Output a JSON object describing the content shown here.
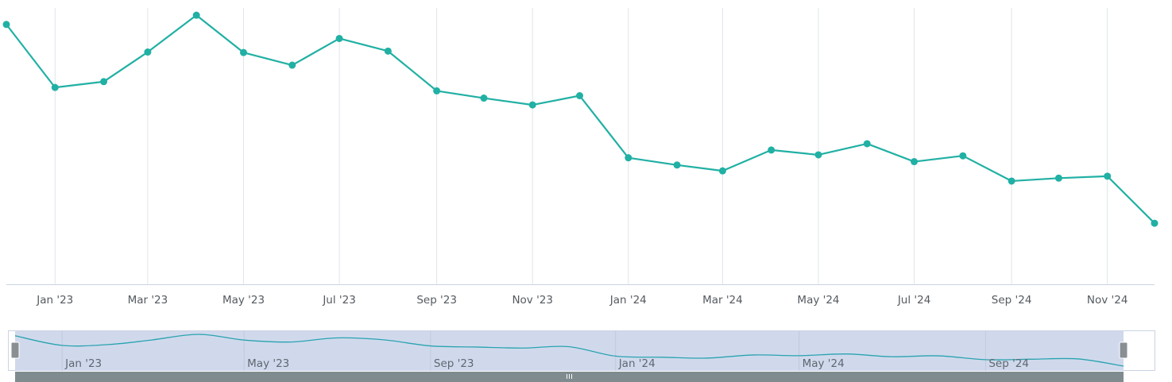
{
  "chart_data": {
    "type": "line",
    "x": [
      "2022-12-01",
      "2023-01-01",
      "2023-02-01",
      "2023-03-01",
      "2023-04-01",
      "2023-05-01",
      "2023-06-01",
      "2023-07-01",
      "2023-08-01",
      "2023-09-01",
      "2023-10-01",
      "2023-11-01",
      "2023-12-01",
      "2024-01-01",
      "2024-02-01",
      "2024-03-01",
      "2024-04-01",
      "2024-05-01",
      "2024-06-01",
      "2024-07-01",
      "2024-08-01",
      "2024-09-01",
      "2024-10-01",
      "2024-11-01",
      "2024-12-01"
    ],
    "series": [
      {
        "values": [
          88.6,
          75.6,
          76.8,
          82.9,
          90.5,
          82.8,
          80.2,
          85.7,
          83.1,
          74.9,
          73.4,
          72.0,
          73.9,
          61.1,
          59.6,
          58.4,
          62.7,
          61.7,
          64.0,
          60.3,
          61.5,
          56.3,
          56.9,
          57.3,
          47.6
        ]
      }
    ],
    "x_tick_labels": [
      "Jan '23",
      "Mar '23",
      "May '23",
      "Jul '23",
      "Sep '23",
      "Nov '23",
      "Jan '24",
      "Mar '24",
      "May '24",
      "Jul '24",
      "Sep '24",
      "Nov '24"
    ],
    "ylim": [
      35,
      92
    ],
    "grid": "vertical",
    "legend": "none",
    "title": "",
    "xlabel": "",
    "ylabel": "",
    "line_color": "#21b0a4",
    "marker": "circle"
  },
  "navigator": {
    "tick_labels": [
      "Jan '23",
      "May '23",
      "Sep '23",
      "Jan '24",
      "May '24",
      "Sep '24"
    ],
    "mask_color": "#d0d9ec",
    "line_color": "#2aa3b0",
    "handle_color": "#8a8f94",
    "scrollbar_color": "#7f8b8f"
  },
  "colors": {
    "grid": "#e1e4ea",
    "axis": "#cbd3e3",
    "label": "#555a60"
  }
}
